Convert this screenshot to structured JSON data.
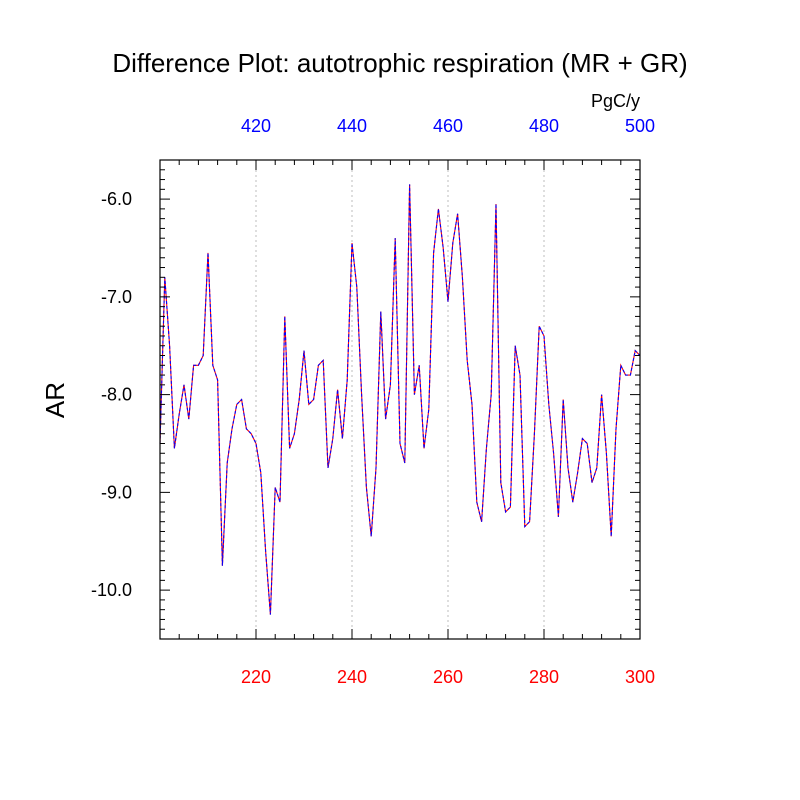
{
  "chart_data": {
    "type": "line",
    "title": "Difference Plot: autotrophic respiration (MR + GR)",
    "units_label": "PgC/y",
    "ylabel": "AR",
    "xlabel": "",
    "xlim": [
      200,
      300
    ],
    "ylim": [
      -10.5,
      -5.6
    ],
    "bottom_axis": {
      "color": "#ff0000",
      "ticks": [
        220,
        240,
        260,
        280,
        300
      ],
      "tick_labels": [
        "220",
        "240",
        "260",
        "280",
        "300"
      ]
    },
    "top_axis": {
      "color": "#0000ff",
      "ticks": [
        220,
        240,
        260,
        280,
        300
      ],
      "tick_labels": [
        "420",
        "440",
        "460",
        "480",
        "500"
      ]
    },
    "y_ticks": [
      -6.0,
      -7.0,
      -8.0,
      -9.0,
      -10.0
    ],
    "y_tick_labels": [
      "-6.0",
      "-7.0",
      "-8.0",
      "-9.0",
      "-10.0"
    ],
    "grid": {
      "vertical": true,
      "style": "dotted"
    },
    "series": [
      {
        "color": "#ff0000",
        "style": "solid",
        "x": [
          200,
          201,
          202,
          203,
          204,
          205,
          206,
          207,
          208,
          209,
          210,
          211,
          212,
          213,
          214,
          215,
          216,
          217,
          218,
          219,
          220,
          221,
          222,
          223,
          224,
          225,
          226,
          227,
          228,
          229,
          230,
          231,
          232,
          233,
          234,
          235,
          236,
          237,
          238,
          239,
          240,
          241,
          242,
          243,
          244,
          245,
          246,
          247,
          248,
          249,
          250,
          251,
          252,
          253,
          254,
          255,
          256,
          257,
          258,
          259,
          260,
          261,
          262,
          263,
          264,
          265,
          266,
          267,
          268,
          269,
          270,
          271,
          272,
          273,
          274,
          275,
          276,
          277,
          278,
          279,
          280,
          281,
          282,
          283,
          284,
          285,
          286,
          287,
          288,
          289,
          290,
          291,
          292,
          293,
          294,
          295,
          296,
          297,
          298,
          299,
          300
        ],
        "y": [
          -8.5,
          -6.8,
          -7.5,
          -8.55,
          -8.2,
          -7.9,
          -8.25,
          -7.7,
          -7.7,
          -7.6,
          -6.55,
          -7.7,
          -7.85,
          -9.75,
          -8.7,
          -8.35,
          -8.1,
          -8.05,
          -8.35,
          -8.4,
          -8.5,
          -8.8,
          -9.6,
          -10.25,
          -8.95,
          -9.1,
          -7.2,
          -8.55,
          -8.4,
          -8.05,
          -7.55,
          -8.1,
          -8.05,
          -7.7,
          -7.65,
          -8.75,
          -8.45,
          -7.95,
          -8.45,
          -7.85,
          -6.45,
          -6.9,
          -8.0,
          -8.95,
          -9.45,
          -8.75,
          -7.15,
          -8.25,
          -7.9,
          -6.4,
          -8.5,
          -8.7,
          -5.85,
          -8.0,
          -7.7,
          -8.55,
          -8.15,
          -6.55,
          -6.1,
          -6.5,
          -7.05,
          -6.45,
          -6.15,
          -6.8,
          -7.65,
          -8.1,
          -9.1,
          -9.3,
          -8.55,
          -8.0,
          -6.05,
          -8.9,
          -9.2,
          -9.15,
          -7.5,
          -7.8,
          -9.35,
          -9.3,
          -8.4,
          -7.3,
          -7.4,
          -8.1,
          -8.6,
          -9.25,
          -8.05,
          -8.75,
          -9.1,
          -8.8,
          -8.45,
          -8.5,
          -8.9,
          -8.75,
          -8.0,
          -8.6,
          -9.45,
          -8.35,
          -7.7,
          -7.8,
          -7.8,
          -7.55,
          -7.6
        ]
      },
      {
        "color": "#0000ff",
        "style": "dashed",
        "x": [
          200,
          201,
          202,
          203,
          204,
          205,
          206,
          207,
          208,
          209,
          210,
          211,
          212,
          213,
          214,
          215,
          216,
          217,
          218,
          219,
          220,
          221,
          222,
          223,
          224,
          225,
          226,
          227,
          228,
          229,
          230,
          231,
          232,
          233,
          234,
          235,
          236,
          237,
          238,
          239,
          240,
          241,
          242,
          243,
          244,
          245,
          246,
          247,
          248,
          249,
          250,
          251,
          252,
          253,
          254,
          255,
          256,
          257,
          258,
          259,
          260,
          261,
          262,
          263,
          264,
          265,
          266,
          267,
          268,
          269,
          270,
          271,
          272,
          273,
          274,
          275,
          276,
          277,
          278,
          279,
          280,
          281,
          282,
          283,
          284,
          285,
          286,
          287,
          288,
          289,
          290,
          291,
          292,
          293,
          294,
          295,
          296,
          297,
          298,
          299,
          300
        ],
        "y": [
          -8.5,
          -6.8,
          -7.5,
          -8.55,
          -8.2,
          -7.9,
          -8.25,
          -7.7,
          -7.7,
          -7.6,
          -6.55,
          -7.7,
          -7.85,
          -9.75,
          -8.7,
          -8.35,
          -8.1,
          -8.05,
          -8.35,
          -8.4,
          -8.5,
          -8.8,
          -9.6,
          -10.25,
          -8.95,
          -9.1,
          -7.2,
          -8.55,
          -8.4,
          -8.05,
          -7.55,
          -8.1,
          -8.05,
          -7.7,
          -7.65,
          -8.75,
          -8.45,
          -7.95,
          -8.45,
          -7.85,
          -6.45,
          -6.9,
          -8.0,
          -8.95,
          -9.45,
          -8.75,
          -7.15,
          -8.25,
          -7.9,
          -6.4,
          -8.5,
          -8.7,
          -5.85,
          -8.0,
          -7.7,
          -8.55,
          -8.15,
          -6.55,
          -6.1,
          -6.5,
          -7.05,
          -6.45,
          -6.15,
          -6.8,
          -7.65,
          -8.1,
          -9.1,
          -9.3,
          -8.55,
          -8.0,
          -6.05,
          -8.9,
          -9.2,
          -9.15,
          -7.5,
          -7.8,
          -9.35,
          -9.3,
          -8.4,
          -7.3,
          -7.4,
          -8.1,
          -8.6,
          -9.25,
          -8.05,
          -8.75,
          -9.1,
          -8.8,
          -8.45,
          -8.5,
          -8.9,
          -8.75,
          -8.0,
          -8.6,
          -9.45,
          -8.35,
          -7.7,
          -7.8,
          -7.8,
          -7.55,
          -7.6
        ]
      }
    ]
  }
}
